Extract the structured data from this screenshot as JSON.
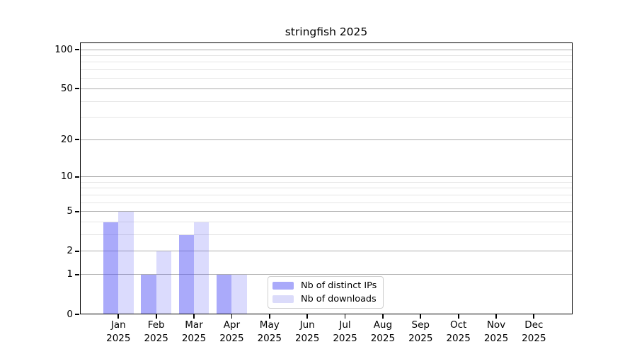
{
  "chart_data": {
    "type": "bar",
    "title": "stringfish 2025",
    "categories": [
      "Jan",
      "Feb",
      "Mar",
      "Apr",
      "May",
      "Jun",
      "Jul",
      "Aug",
      "Sep",
      "Oct",
      "Nov",
      "Dec"
    ],
    "category_year": "2025",
    "series": [
      {
        "name": "Nb of distinct IPs",
        "fill": "rgba(85,85,245,0.5)",
        "legend_color": "#aaaafa",
        "values": [
          4,
          1,
          3,
          1,
          0,
          0,
          0,
          0,
          0,
          0,
          0,
          0
        ]
      },
      {
        "name": "Nb of downloads",
        "fill": "rgba(85,85,245,0.21)",
        "legend_color": "#dbdbfa",
        "values": [
          5,
          2,
          4,
          1,
          0,
          0,
          0,
          0,
          0,
          0,
          0,
          0
        ]
      }
    ],
    "y_axis": {
      "scale": "log1p",
      "major_ticks": [
        0,
        1,
        2,
        5,
        10,
        20,
        50,
        100
      ],
      "minor_ticks": [
        3,
        4,
        6,
        7,
        8,
        9,
        30,
        40,
        60,
        70,
        80,
        90
      ],
      "top_value": 113.3,
      "ylim": [
        0,
        113.3
      ],
      "major_grid_color": "#ababab",
      "minor_grid_color": "#e5e5e5"
    },
    "x_axis": {
      "tick_label_lines": 2
    },
    "legend": {
      "position": "lower-right-of-center",
      "border_color": "#cfcfcf"
    },
    "grid": true,
    "xlabel": "",
    "ylabel": ""
  }
}
